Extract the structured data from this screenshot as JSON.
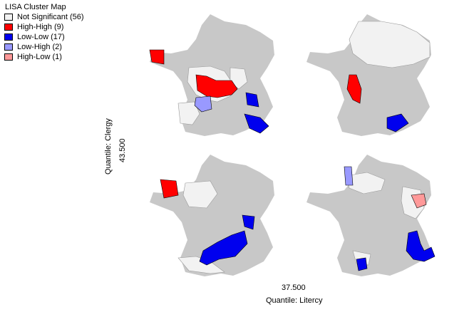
{
  "legend": {
    "title": "LISA Cluster Map",
    "items": [
      {
        "label": "Not Significant (56)",
        "color": "#f2f2f2"
      },
      {
        "label": "High-High (9)",
        "color": "#ff0000"
      },
      {
        "label": "Low-Low (17)",
        "color": "#0000ee"
      },
      {
        "label": "Low-High (2)",
        "color": "#9999ff"
      },
      {
        "label": "High-Low (1)",
        "color": "#ff9999"
      }
    ]
  },
  "axes": {
    "y_title": "Quantile: Clergy",
    "y_value": "43.500",
    "x_value": "37.500",
    "x_title": "Quantile: Litercy"
  },
  "colors": {
    "background_region": "#c8c8c8",
    "not_significant": "#f2f2f2",
    "outline": "#999999"
  }
}
